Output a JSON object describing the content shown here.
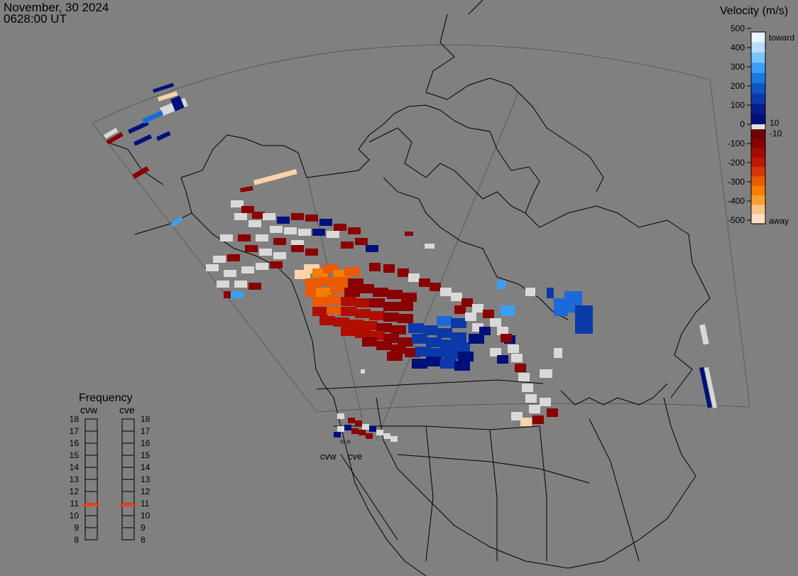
{
  "header": {
    "date": "November, 30 2024",
    "time": "0628:00 UT"
  },
  "colorbar": {
    "title": "Velocity (m/s)",
    "ticks": [
      "500",
      "400",
      "300",
      "200",
      "100",
      "0",
      "-100",
      "-200",
      "-300",
      "-400",
      "-500"
    ],
    "inner_ticks": [
      "10",
      "-10"
    ],
    "toward_label": "toward",
    "away_label": "away",
    "colors": {
      "toward": [
        "#e8f4ff",
        "#b8dcff",
        "#7cc2ff",
        "#3aa0f5",
        "#1b78e0",
        "#0f56c4",
        "#0b3aa8",
        "#061e8a",
        "#00107a"
      ],
      "away": [
        "#6e0000",
        "#8a0000",
        "#a50a00",
        "#c01800",
        "#d83600",
        "#ea5a00",
        "#f57f00",
        "#fb9e2e",
        "#ffc28a",
        "#ffe0c4"
      ]
    }
  },
  "frequency": {
    "title": "Frequency",
    "radar_left": "cvw",
    "radar_right": "cve",
    "levels": [
      "18",
      "17",
      "16",
      "15",
      "14",
      "13",
      "12",
      "11",
      "10",
      "9",
      "8"
    ],
    "value_left": 10.9,
    "value_right": 10.9,
    "marker_color": "#e8401a"
  },
  "map": {
    "site_labels": [
      "cvw",
      "cve"
    ],
    "colors": {
      "background": "#808080",
      "coast": "#000000",
      "fov_outline": "#5a5a5a",
      "ground_scatter": "#d9d9d9"
    }
  }
}
